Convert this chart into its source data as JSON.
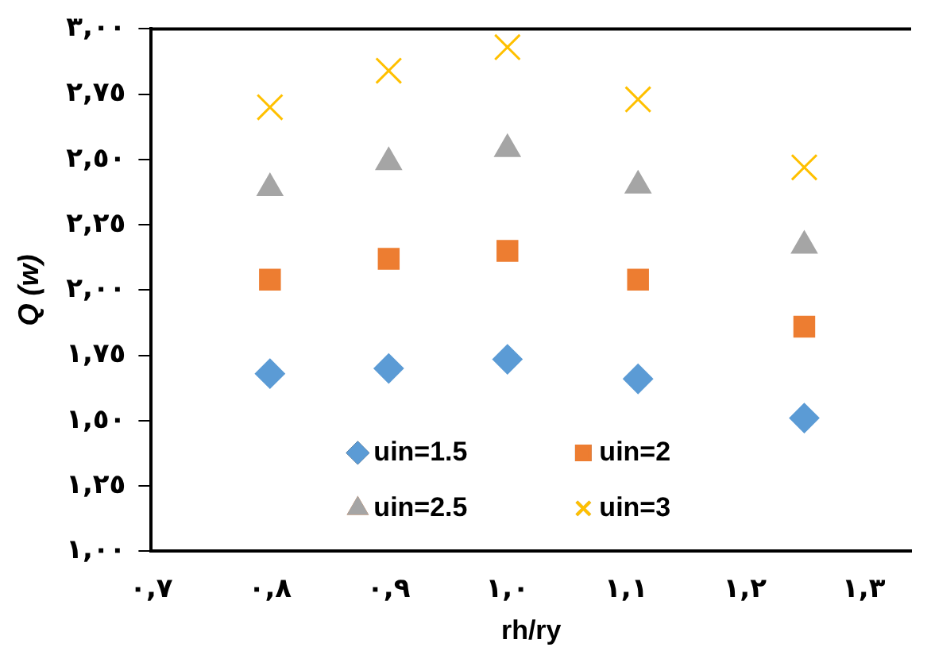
{
  "chart_data": {
    "type": "scatter",
    "xlabel": "rh/ry",
    "ylabel": "Q (w)",
    "xlim": [
      0.7,
      1.34
    ],
    "xticks": [
      {
        "value": 0.7,
        "label": "٠,٧"
      },
      {
        "value": 0.8,
        "label": "٠,٨"
      },
      {
        "value": 0.9,
        "label": "٠,٩"
      },
      {
        "value": 1.0,
        "label": "١,٠"
      },
      {
        "value": 1.1,
        "label": "١,١"
      },
      {
        "value": 1.2,
        "label": "١,٢"
      },
      {
        "value": 1.3,
        "label": "١,٣"
      }
    ],
    "ylim": [
      1.0,
      3.0
    ],
    "yticks": [
      {
        "value": 1.0,
        "label": "١,٠٠"
      },
      {
        "value": 1.25,
        "label": "١,٢٥"
      },
      {
        "value": 1.5,
        "label": "١,٥٠"
      },
      {
        "value": 1.75,
        "label": "١,٧٥"
      },
      {
        "value": 2.0,
        "label": "٢,٠٠"
      },
      {
        "value": 2.25,
        "label": "٢,٢٥"
      },
      {
        "value": 2.5,
        "label": "٢,٥٠"
      },
      {
        "value": 2.75,
        "label": "٢,٧٥"
      },
      {
        "value": 3.0,
        "label": "٣,٠٠"
      }
    ],
    "x": [
      0.8,
      0.9,
      1.0,
      1.11,
      1.25
    ],
    "series": [
      {
        "name": "uin=1.5",
        "color": "#5b9bd5",
        "marker": "diamond",
        "values": [
          1.68,
          1.7,
          1.735,
          1.66,
          1.51
        ]
      },
      {
        "name": "uin=2",
        "color": "#ed7d31",
        "marker": "square",
        "values": [
          2.04,
          2.12,
          2.15,
          2.04,
          1.86
        ]
      },
      {
        "name": "uin=2.5",
        "color": "#a5a5a5",
        "marker": "triangle",
        "values": [
          2.39,
          2.49,
          2.54,
          2.4,
          2.17
        ]
      },
      {
        "name": "uin=3",
        "color": "#ffc000",
        "marker": "cross",
        "values": [
          2.7,
          2.84,
          2.93,
          2.73,
          2.47
        ]
      }
    ],
    "grid": false,
    "legend": "bottom"
  }
}
